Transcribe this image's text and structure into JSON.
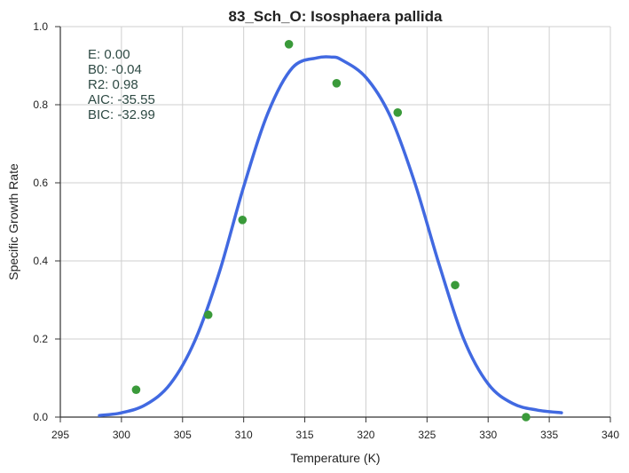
{
  "chart_data": {
    "type": "scatter",
    "title": "83_Sch_O: Isosphaera pallida",
    "xlabel": "Temperature (K)",
    "ylabel": "Specific Growth Rate",
    "xlim": [
      295,
      340
    ],
    "ylim": [
      0.0,
      1.0
    ],
    "xticks": [
      295,
      300,
      305,
      310,
      315,
      320,
      325,
      330,
      335,
      340
    ],
    "yticks": [
      0.0,
      0.2,
      0.4,
      0.6,
      0.8,
      1.0
    ],
    "xtick_labels": [
      "295",
      "300",
      "305",
      "310",
      "315",
      "320",
      "325",
      "330",
      "335",
      "340"
    ],
    "ytick_labels": [
      "0.0",
      "0.2",
      "0.4",
      "0.6",
      "0.8",
      "1.0"
    ],
    "grid": true,
    "series": [
      {
        "kind": "points",
        "color": "#3a9a3a",
        "x": [
          301.2,
          307.1,
          309.9,
          313.7,
          317.6,
          322.6,
          327.3,
          333.1
        ],
        "y": [
          0.07,
          0.262,
          0.505,
          0.955,
          0.855,
          0.78,
          0.338,
          0.0
        ]
      },
      {
        "kind": "fit",
        "color": "#4169e1",
        "x": [
          298.2,
          300,
          302,
          304,
          306,
          308,
          310,
          312,
          314,
          316,
          317.2,
          318,
          320,
          322,
          324,
          326,
          328,
          330,
          332,
          334,
          336
        ],
        "y": [
          0.004,
          0.011,
          0.032,
          0.085,
          0.195,
          0.37,
          0.59,
          0.78,
          0.895,
          0.92,
          0.922,
          0.915,
          0.87,
          0.77,
          0.6,
          0.39,
          0.2,
          0.085,
          0.035,
          0.018,
          0.011
        ]
      }
    ],
    "stats": [
      {
        "label": "E:",
        "value": "0.00"
      },
      {
        "label": "B0:",
        "value": "-0.04"
      },
      {
        "label": "R2:",
        "value": "0.98"
      },
      {
        "label": "AIC:",
        "value": "-35.55"
      },
      {
        "label": "BIC:",
        "value": "-32.99"
      }
    ]
  }
}
